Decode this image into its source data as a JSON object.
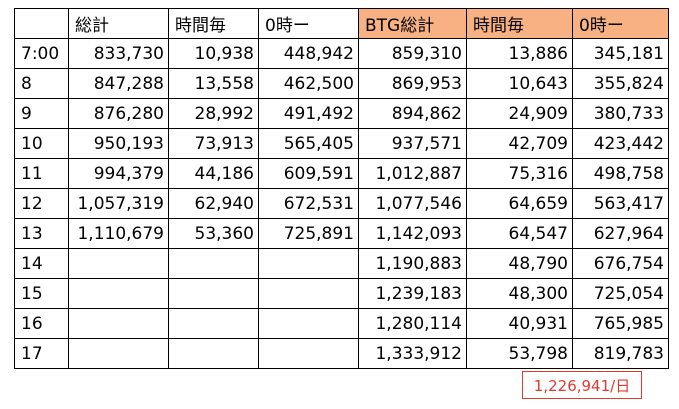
{
  "table": {
    "headers": [
      "",
      "総計",
      "時間毎",
      "0時ー",
      "BTG総計",
      "時間毎",
      "0時ー"
    ],
    "header_highlight_color": "#f7b182",
    "rows": [
      [
        "7:00",
        "833,730",
        "10,938",
        "448,942",
        "859,310",
        "13,886",
        "345,181"
      ],
      [
        "8",
        "847,288",
        "13,558",
        "462,500",
        "869,953",
        "10,643",
        "355,824"
      ],
      [
        "9",
        "876,280",
        "28,992",
        "491,492",
        "894,862",
        "24,909",
        "380,733"
      ],
      [
        "10",
        "950,193",
        "73,913",
        "565,405",
        "937,571",
        "42,709",
        "423,442"
      ],
      [
        "11",
        "994,379",
        "44,186",
        "609,591",
        "1,012,887",
        "75,316",
        "498,758"
      ],
      [
        "12",
        "1,057,319",
        "62,940",
        "672,531",
        "1,077,546",
        "64,659",
        "563,417"
      ],
      [
        "13",
        "1,110,679",
        "53,360",
        "725,891",
        "1,142,093",
        "64,547",
        "627,964"
      ],
      [
        "14",
        "",
        "",
        "",
        "1,190,883",
        "48,790",
        "676,754"
      ],
      [
        "15",
        "",
        "",
        "",
        "1,239,183",
        "48,300",
        "725,054"
      ],
      [
        "16",
        "",
        "",
        "",
        "1,280,114",
        "40,931",
        "765,985"
      ],
      [
        "17",
        "",
        "",
        "",
        "1,333,912",
        "53,798",
        "819,783"
      ]
    ]
  },
  "daily_total": {
    "text": "1,226,941/日",
    "color": "#e03a2f"
  }
}
